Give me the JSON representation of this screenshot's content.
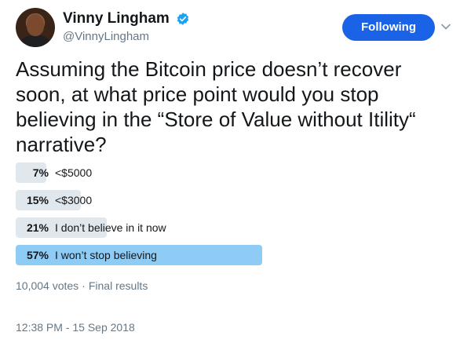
{
  "user": {
    "display_name": "Vinny Lingham",
    "handle": "@VinnyLingham",
    "verified": true,
    "verified_icon": "verified-badge-icon"
  },
  "follow_button": {
    "label": "Following",
    "color": "#1b63e6"
  },
  "tweet": {
    "text": "Assuming the Bitcoin price doesn’t recover soon, at what price point would you stop believing in the “Store of Value without Itility“ narrative?"
  },
  "poll": {
    "options": [
      {
        "percent_label": "7%",
        "label": "<$5000",
        "percent": 7,
        "winner": false
      },
      {
        "percent_label": "15%",
        "label": "<$3000",
        "percent": 15,
        "winner": false
      },
      {
        "percent_label": "21%",
        "label": "I don’t believe in it now",
        "percent": 21,
        "winner": false
      },
      {
        "percent_label": "57%",
        "label": "I won’t stop believing",
        "percent": 57,
        "winner": true
      }
    ],
    "votes": "10,004 votes",
    "status": "Final results",
    "bar_color": "#e1e8ed",
    "winner_bar_color": "#8ecbf5"
  },
  "timestamp": "12:38 PM - 15 Sep 2018"
}
